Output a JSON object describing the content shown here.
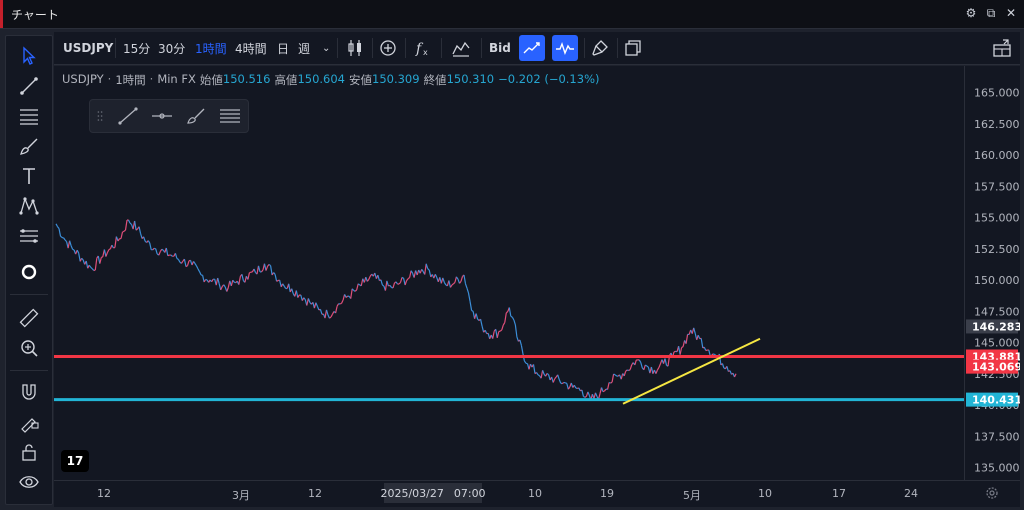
{
  "window": {
    "title": "チャート"
  },
  "toolbar": {
    "symbol": "USDJPY",
    "intervals": [
      {
        "label": "15分",
        "active": false
      },
      {
        "label": "30分",
        "active": false
      },
      {
        "label": "1時間",
        "active": true
      },
      {
        "label": "4時間",
        "active": false
      },
      {
        "label": "日",
        "active": false
      },
      {
        "label": "週",
        "active": false
      }
    ],
    "bid_label": "Bid"
  },
  "legend": {
    "symbol": "USDJPY",
    "interval": "1時間",
    "source": "Min FX",
    "open_label": "始値",
    "open": "150.516",
    "high_label": "高値",
    "high": "150.604",
    "low_label": "安値",
    "low": "150.309",
    "close_label": "終値",
    "close": "150.310",
    "change": "−0.202 (−0.13%)"
  },
  "price_axis": {
    "ticks": [
      "165.000",
      "162.500",
      "160.000",
      "157.500",
      "155.000",
      "152.500",
      "150.000",
      "147.500",
      "145.000",
      "142.500",
      "140.000",
      "137.500",
      "135.000"
    ],
    "tick_values": [
      165,
      162.5,
      160,
      157.5,
      155,
      152.5,
      150,
      147.5,
      145,
      142.5,
      140,
      137.5,
      135
    ],
    "labels": [
      {
        "text": "146.283",
        "value": 146.283,
        "color": "#3a3e4a"
      },
      {
        "text": "143.881",
        "value": 143.881,
        "color": "#f23645"
      },
      {
        "text": "143.069",
        "value": 143.069,
        "color": "#f23645"
      },
      {
        "text": "140.431",
        "value": 140.431,
        "color": "#22b5d6"
      }
    ]
  },
  "horizontal_lines": [
    {
      "value": 143.881,
      "color": "#f23645"
    },
    {
      "value": 140.431,
      "color": "#22b5d6"
    }
  ],
  "trendline": {
    "color": "#f5e642"
  },
  "time_axis": {
    "labels": [
      "12",
      "3月",
      "12",
      "10",
      "19",
      "5月",
      "10",
      "17",
      "24"
    ],
    "cursor_date": "2025/03/27",
    "cursor_time": "07:00"
  },
  "logo": {
    "text": "17"
  },
  "chart_data": {
    "type": "line",
    "title": "",
    "series": [
      {
        "values": [
          154.5,
          153.2,
          152.4,
          151.6,
          150.9,
          151.8,
          152.5,
          153.3,
          154.8,
          154.1,
          153.0,
          152.5,
          152.2,
          151.9,
          151.5,
          151.2,
          150.4,
          150.0,
          149.7,
          149.4,
          149.9,
          150.3,
          150.6,
          151.3,
          150.6,
          149.7,
          149.3,
          148.8,
          148.2,
          147.6,
          147.2,
          147.9,
          148.6,
          149.1,
          149.8,
          150.3,
          149.6,
          149.4,
          149.8,
          150.2,
          150.8,
          150.9,
          150.2,
          149.6,
          149.8,
          150.4,
          147.5,
          146.3,
          145.6,
          145.9,
          147.8,
          145.1,
          143.3,
          142.6,
          142.3,
          142.1,
          141.8,
          141.4,
          141.2,
          140.4,
          140.9,
          141.8,
          142.3,
          142.8,
          143.6,
          143.2,
          142.8,
          143.3,
          143.8,
          144.6,
          146.0,
          145.3,
          144.4,
          143.8,
          143.1,
          142.5
        ]
      }
    ],
    "ylim": [
      135,
      165
    ]
  }
}
